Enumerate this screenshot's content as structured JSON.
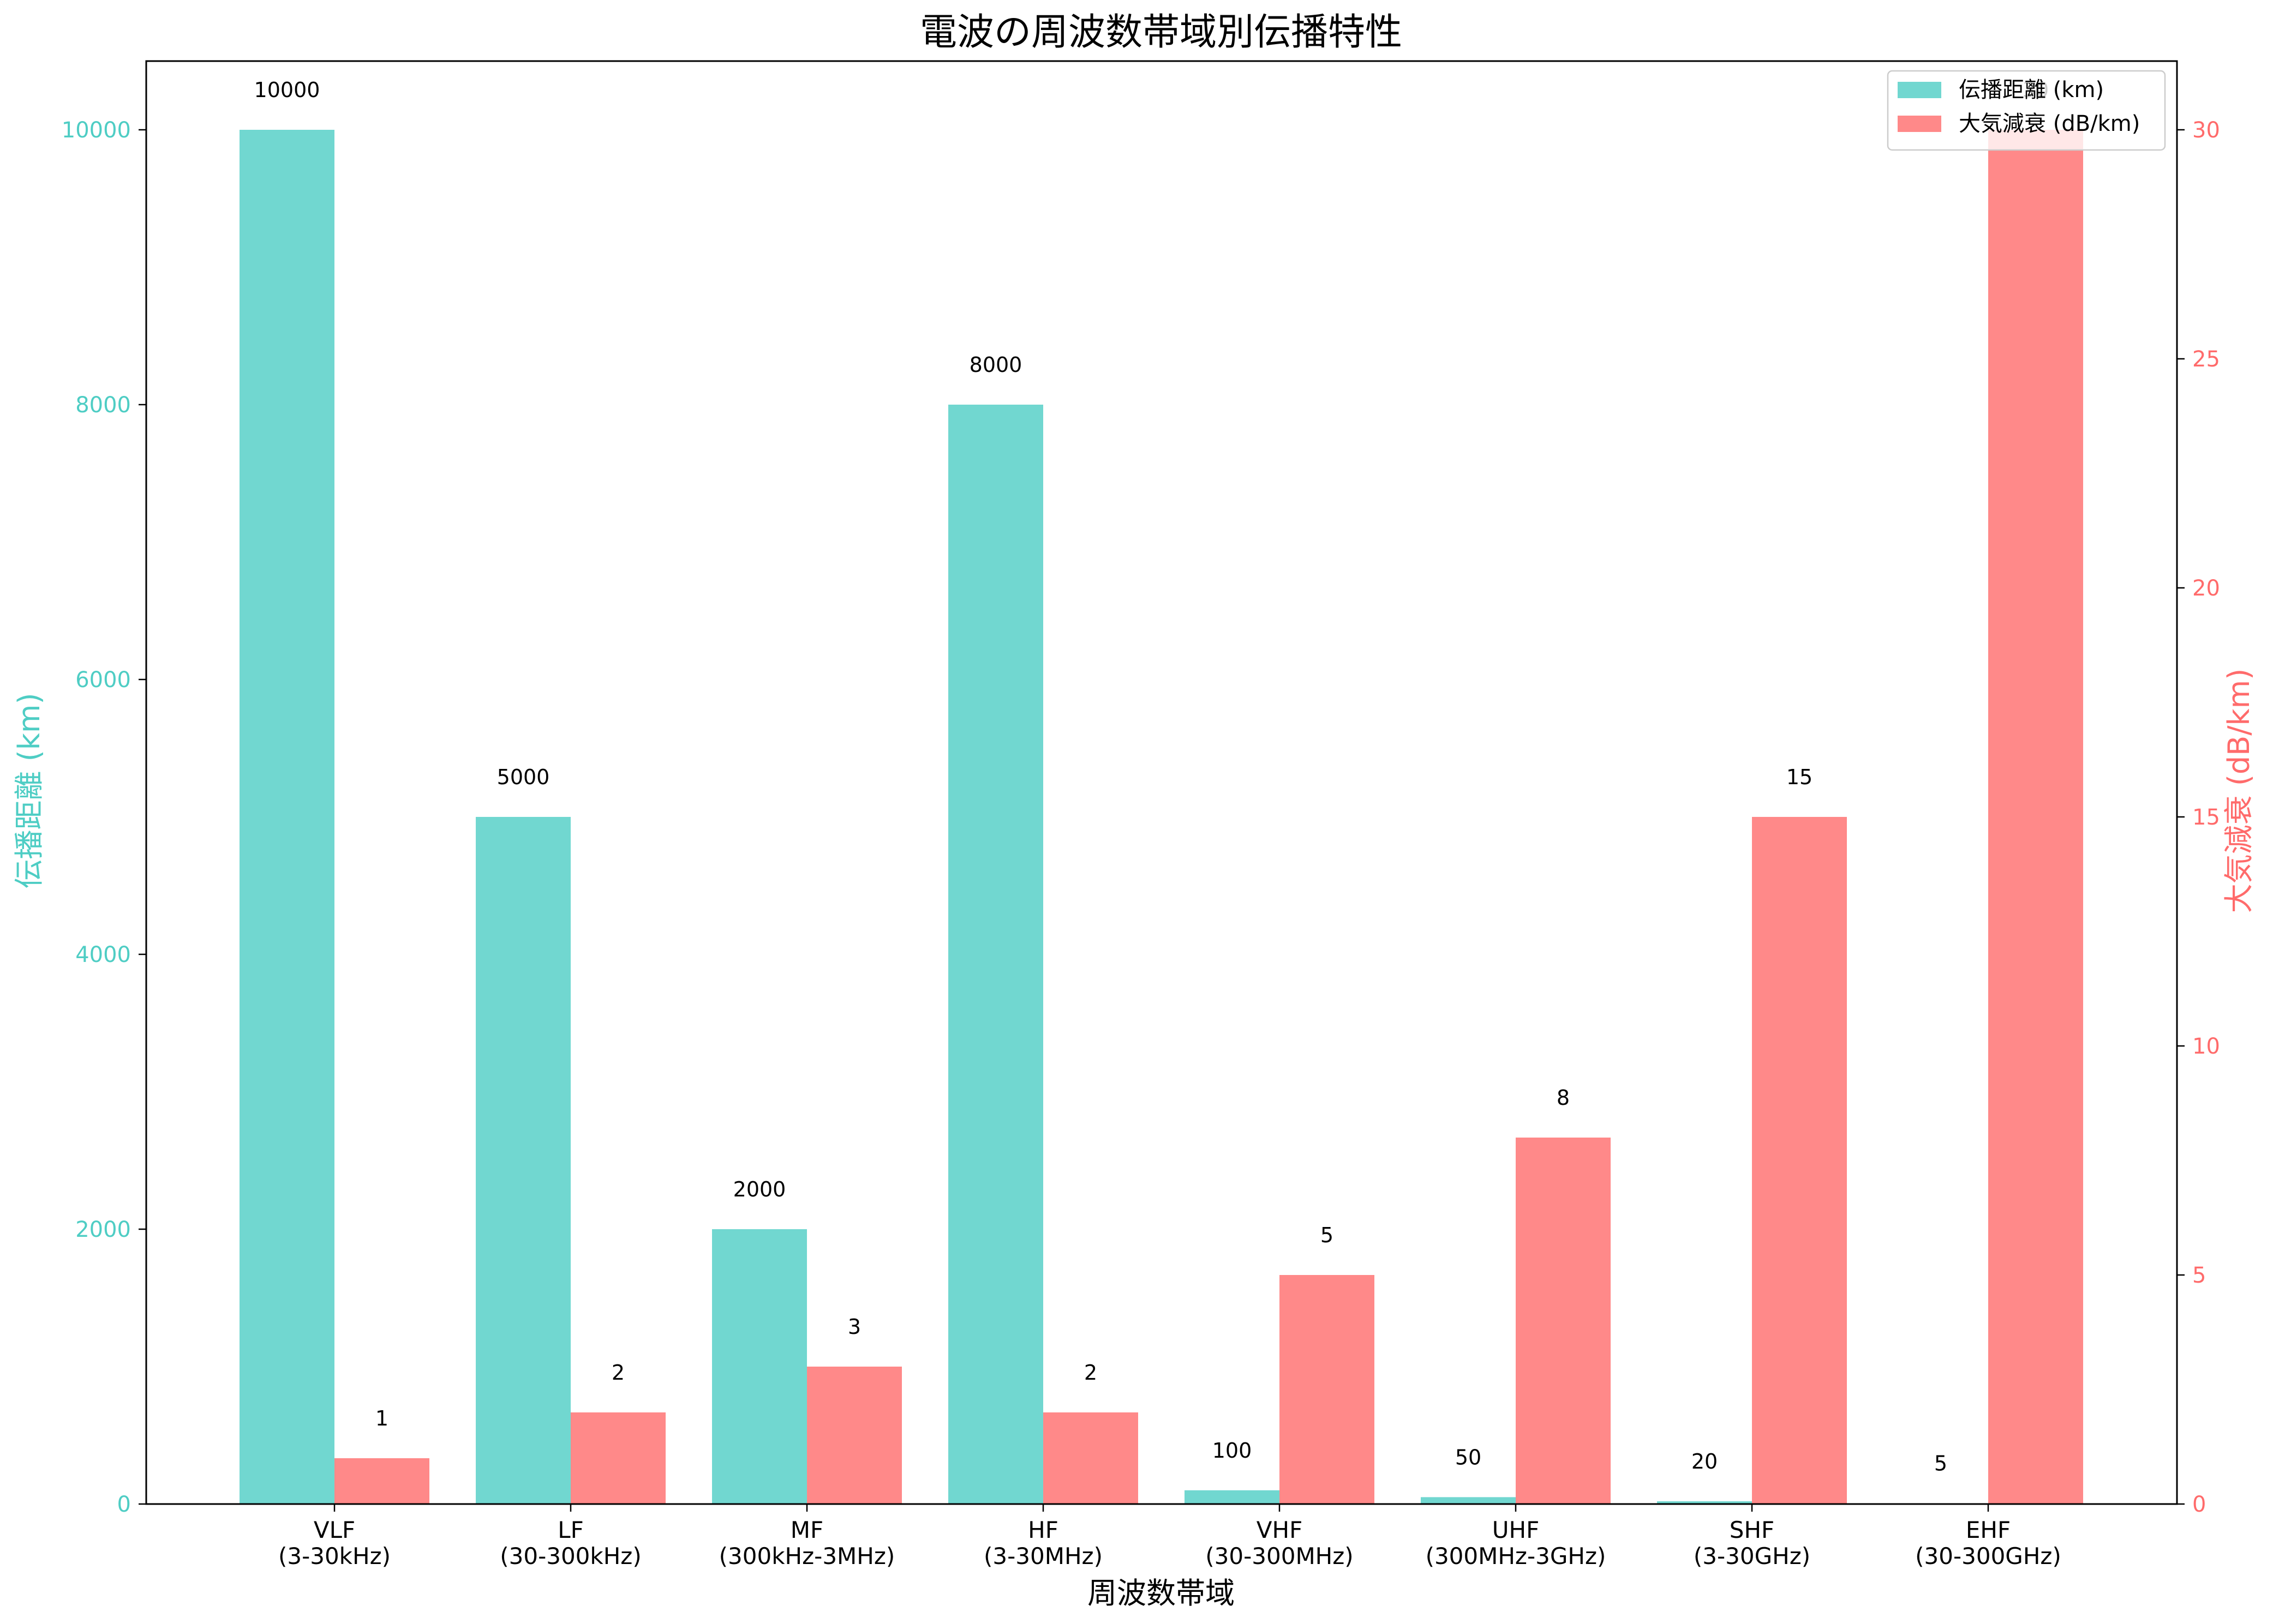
{
  "chart_data": {
    "type": "bar",
    "title": "電波の周波数帯域別伝播特性",
    "xlabel": "周波数帯域",
    "categories": [
      [
        "VLF",
        "(3-30kHz)"
      ],
      [
        "LF",
        "(30-300kHz)"
      ],
      [
        "MF",
        "(300kHz-3MHz)"
      ],
      [
        "HF",
        "(3-30MHz)"
      ],
      [
        "VHF",
        "(30-300MHz)"
      ],
      [
        "UHF",
        "(300MHz-3GHz)"
      ],
      [
        "SHF",
        "(3-30GHz)"
      ],
      [
        "EHF",
        "(30-300GHz)"
      ]
    ],
    "series": [
      {
        "name": "伝播距離 (km)",
        "axis": "left",
        "color": "#4ECDC4",
        "values": [
          10000,
          5000,
          2000,
          8000,
          100,
          50,
          20,
          5
        ]
      },
      {
        "name": "大気減衰 (dB/km)",
        "axis": "right",
        "color": "#FF6B6B",
        "values": [
          1,
          2,
          3,
          2,
          5,
          8,
          15,
          30
        ]
      }
    ],
    "y_left": {
      "label": "伝播距離 (km)",
      "ylim": [
        0,
        10500
      ],
      "ticks": [
        0,
        2000,
        4000,
        6000,
        8000,
        10000
      ],
      "color": "#4ECDC4"
    },
    "y_right": {
      "label": "大気減衰 (dB/km)",
      "ylim": [
        0,
        31.5
      ],
      "ticks": [
        0,
        5,
        10,
        15,
        20,
        25,
        30
      ],
      "color": "#FF6B6B"
    },
    "legend_position": "top-right",
    "grid": false
  }
}
